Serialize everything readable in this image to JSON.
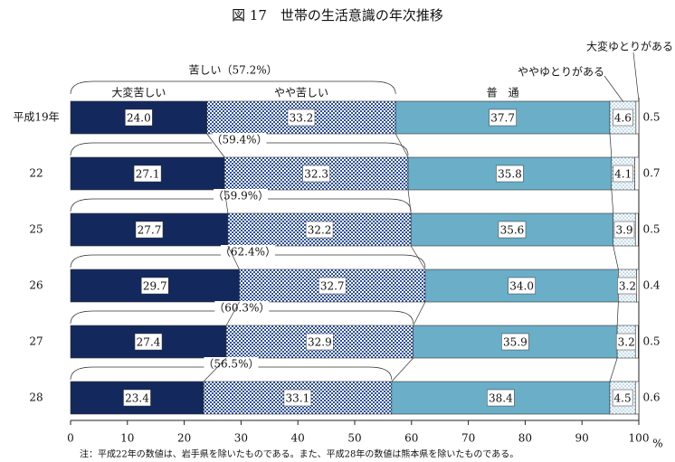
{
  "chart_data": {
    "type": "stacked-bar-horizontal",
    "title": "図 17　世帯の生活意識の年次推移",
    "categories": [
      "平成19年",
      "22",
      "25",
      "26",
      "27",
      "28"
    ],
    "series": [
      {
        "name": "大変苦しい",
        "color": "#13285c",
        "pattern": "solid",
        "values": [
          24.0,
          27.1,
          27.7,
          29.7,
          27.4,
          23.4
        ],
        "value_labels": [
          "24.0",
          "27.1",
          "27.7",
          "29.7",
          "27.4",
          "23.4"
        ]
      },
      {
        "name": "やや苦しい",
        "color": "#2c4f9e",
        "pattern": "checker",
        "values": [
          33.2,
          32.3,
          32.2,
          32.7,
          32.9,
          33.1
        ],
        "value_labels": [
          "33.2",
          "32.3",
          "32.2",
          "32.7",
          "32.9",
          "33.1"
        ]
      },
      {
        "name": "普　通",
        "color": "#6aaec8",
        "pattern": "solid",
        "values": [
          37.7,
          35.8,
          35.6,
          34.0,
          35.9,
          38.4
        ],
        "value_labels": [
          "37.7",
          "35.8",
          "35.6",
          "34.0",
          "35.9",
          "38.4"
        ]
      },
      {
        "name": "ややゆとりがある",
        "color": "#7fb6d6",
        "pattern": "dots",
        "values": [
          4.6,
          4.1,
          3.9,
          3.2,
          3.2,
          4.5
        ],
        "value_labels": [
          "4.6",
          "4.1",
          "3.9",
          "3.2",
          "3.2",
          "4.5"
        ]
      },
      {
        "name": "大変ゆとりがある",
        "color": "#ffffff",
        "pattern": "solid",
        "values": [
          0.5,
          0.7,
          0.5,
          0.4,
          0.5,
          0.6
        ],
        "value_labels": [
          "0.5",
          "0.7",
          "0.5",
          "0.4",
          "0.5",
          "0.6"
        ]
      }
    ],
    "annotations": [
      "苦しい（57.2%）",
      "（59.4%）",
      "（59.9%）",
      "（62.4%）",
      "（60.3%）",
      "（56.5%）"
    ],
    "xlim": [
      0,
      100
    ],
    "xticks": [
      0,
      10,
      20,
      30,
      40,
      50,
      60,
      70,
      80,
      90,
      100
    ],
    "xlabel": "%",
    "note": "注：平成22年の数値は、岩手県を除いたものである。また、平成28年の数値は熊本県を除いたものである。"
  }
}
